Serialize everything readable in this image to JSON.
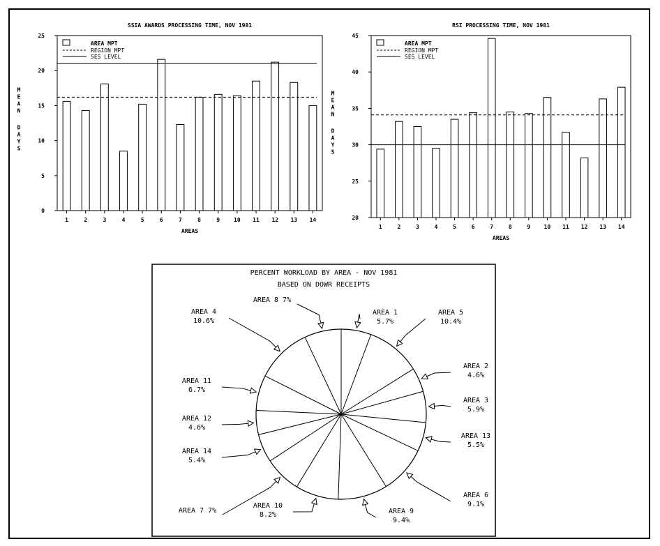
{
  "chart_data": [
    {
      "type": "bar",
      "title": "SSIA AWARDS PROCESSING TIME, NOV 1981",
      "xlabel": "AREAS",
      "ylabel": "MEAN DAYS",
      "ylim": [
        0,
        25
      ],
      "yticks": [
        "0",
        "5",
        "10",
        "15",
        "20",
        "25"
      ],
      "categories": [
        "1",
        "2",
        "3",
        "4",
        "5",
        "6",
        "7",
        "8",
        "9",
        "10",
        "11",
        "12",
        "13",
        "14"
      ],
      "series": [
        {
          "name": "AREA MPT",
          "values": [
            15.6,
            14.3,
            18.1,
            8.5,
            15.2,
            21.6,
            12.3,
            16.2,
            16.6,
            16.4,
            18.5,
            21.2,
            18.3,
            15.0
          ]
        }
      ],
      "reference_lines": [
        {
          "name": "REGION MPT",
          "style": "dashed",
          "value": 16.2
        },
        {
          "name": "SES LEVEL",
          "style": "solid",
          "value": 21.0
        }
      ],
      "legend": [
        "AREA MPT",
        "REGION MPT",
        "SES LEVEL"
      ],
      "legend_position": "top-left",
      "grid": false
    },
    {
      "type": "bar",
      "title": "RSI PROCESSING TIME, NOV 1981",
      "xlabel": "AREAS",
      "ylabel": "MEAN DAYS",
      "ylim": [
        20,
        45
      ],
      "yticks": [
        "20",
        "25",
        "30",
        "35",
        "40",
        "45"
      ],
      "categories": [
        "1",
        "2",
        "3",
        "4",
        "5",
        "6",
        "7",
        "8",
        "9",
        "10",
        "11",
        "12",
        "13",
        "14"
      ],
      "series": [
        {
          "name": "AREA MPT",
          "values": [
            29.4,
            33.2,
            32.5,
            29.5,
            33.5,
            34.4,
            44.6,
            34.5,
            34.3,
            36.5,
            31.7,
            28.2,
            36.3,
            37.9
          ]
        }
      ],
      "reference_lines": [
        {
          "name": "REGION MPT",
          "style": "dashed",
          "value": 34.1
        },
        {
          "name": "SES LEVEL",
          "style": "solid",
          "value": 30.0
        }
      ],
      "legend": [
        "AREA MPT",
        "REGION MPT",
        "SES LEVEL"
      ],
      "legend_position": "top-left",
      "grid": false
    },
    {
      "type": "pie",
      "title": "PERCENT WORKLOAD BY AREA - NOV 1981",
      "subtitle": "BASED ON DOWR RECEIPTS",
      "slices": [
        {
          "name": "AREA 1",
          "pct_label": "5.7%",
          "value": 5.7
        },
        {
          "name": "AREA 5",
          "pct_label": "10.4%",
          "value": 10.4
        },
        {
          "name": "AREA 2",
          "pct_label": "4.6%",
          "value": 4.6
        },
        {
          "name": "AREA 3",
          "pct_label": "5.9%",
          "value": 5.9
        },
        {
          "name": "AREA 13",
          "pct_label": "5.5%",
          "value": 5.5
        },
        {
          "name": "AREA 6",
          "pct_label": "9.1%",
          "value": 9.1
        },
        {
          "name": "AREA 9",
          "pct_label": "9.4%",
          "value": 9.4
        },
        {
          "name": "AREA 10",
          "pct_label": "8.2%",
          "value": 8.2
        },
        {
          "name": "AREA 7",
          "pct_label": "7%",
          "value": 7
        },
        {
          "name": "AREA 14",
          "pct_label": "5.4%",
          "value": 5.4
        },
        {
          "name": "AREA 12",
          "pct_label": "4.6%",
          "value": 4.6
        },
        {
          "name": "AREA 11",
          "pct_label": "6.7%",
          "value": 6.7
        },
        {
          "name": "AREA 4",
          "pct_label": "10.6%",
          "value": 10.6
        },
        {
          "name": "AREA 8",
          "pct_label": "7%",
          "value": 7
        }
      ]
    }
  ]
}
